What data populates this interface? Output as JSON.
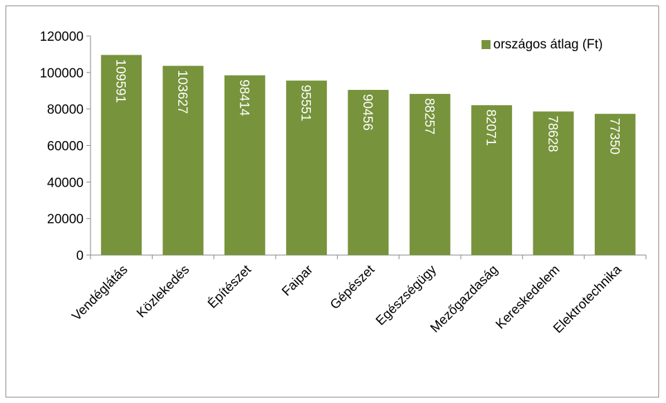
{
  "chart_data": {
    "type": "bar",
    "categories": [
      "Vendéglátás",
      "Közlekedés",
      "Építészet",
      "Faipar",
      "Gépészet",
      "Egészségügy",
      "Mezőgazdaság",
      "Kereskedelem",
      "Elektrotechnika"
    ],
    "series": [
      {
        "name": "országos átlag  (Ft)",
        "values": [
          109591,
          103627,
          98414,
          95551,
          90456,
          88257,
          82071,
          78628,
          77350
        ],
        "color": "#77933c"
      }
    ],
    "ylim": [
      0,
      120000
    ],
    "yticks": [
      0,
      20000,
      40000,
      60000,
      80000,
      100000,
      120000
    ],
    "grid": false,
    "legend_position": "top-right",
    "data_labels": "inside-end-rotated"
  }
}
